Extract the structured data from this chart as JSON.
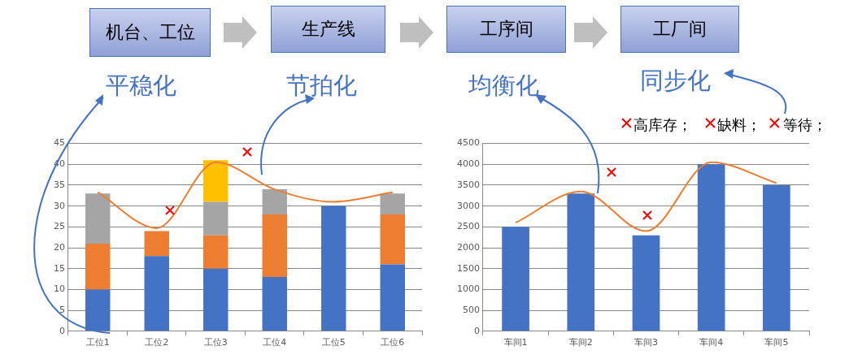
{
  "chart_data": [
    {
      "type": "bar",
      "stacked": true,
      "grid": "y",
      "categories": [
        "工位1",
        "工位2",
        "工位3",
        "工位4",
        "工位5",
        "工位6"
      ],
      "ylim": [
        0,
        45
      ],
      "yticks": [
        0,
        5,
        10,
        15,
        20,
        25,
        30,
        35,
        40,
        45
      ],
      "series": [
        {
          "color": "#4472c4",
          "values": [
            10,
            18,
            15,
            13,
            30,
            16
          ]
        },
        {
          "color": "#ed7d31",
          "values": [
            11,
            6,
            8,
            15,
            null,
            12
          ]
        },
        {
          "color": "#a5a5a5",
          "values": [
            12,
            null,
            8,
            6,
            null,
            5
          ]
        },
        {
          "color": "#ffc000",
          "values": [
            null,
            null,
            10,
            null,
            null,
            null
          ]
        },
        {
          "type": "line",
          "color": "#ed7d31",
          "values": [
            33.3,
            24.7,
            40.5,
            34,
            31,
            33.3
          ]
        }
      ],
      "annotations": [
        "机台、工位",
        "生产线",
        "平稳化",
        "节拍化"
      ]
    },
    {
      "type": "bar",
      "grid": "y",
      "categories": [
        "车间1",
        "车间2",
        "车间3",
        "车间4",
        "车间5"
      ],
      "ylim": [
        0,
        4500
      ],
      "yticks": [
        0,
        500,
        1000,
        1500,
        2000,
        2500,
        3000,
        3500,
        4000,
        4500
      ],
      "series": [
        {
          "color": "#4472c4",
          "values": [
            2500,
            3300,
            2300,
            4000,
            3500
          ]
        },
        {
          "type": "line",
          "color": "#ed7d31",
          "values": [
            2600,
            3350,
            2400,
            4050,
            3550
          ]
        }
      ],
      "annotations": [
        "工序间",
        "工厂间",
        "均衡化",
        "同步化",
        "高库存；",
        "缺料；",
        "等待；"
      ]
    }
  ]
}
